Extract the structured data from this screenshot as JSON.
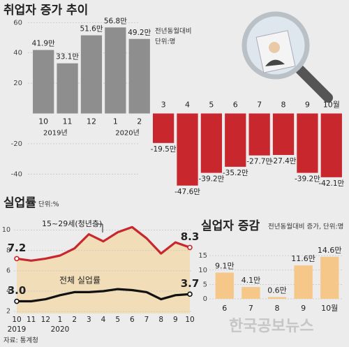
{
  "chart_data": [
    {
      "type": "bar",
      "title": "취업자 증가 추이",
      "subtitle": "전년동월대비",
      "unit": "단위:명",
      "categories": [
        "10",
        "11",
        "12",
        "1",
        "2",
        "3",
        "4",
        "5",
        "6",
        "7",
        "8",
        "9",
        "10월"
      ],
      "category_years": [
        "2019년",
        null,
        null,
        "2020년",
        null,
        null,
        null,
        null,
        null,
        null,
        null,
        null,
        null
      ],
      "values": [
        41.9,
        33.1,
        51.6,
        56.8,
        49.2,
        -19.5,
        -47.6,
        -39.2,
        -35.2,
        -27.7,
        -27.4,
        -39.2,
        -42.1
      ],
      "value_labels": [
        "41.9만",
        "33.1만",
        "51.6만",
        "56.8만",
        "49.2만",
        "-19.5만",
        "-47.6만",
        "-39.2만",
        "-35.2만",
        "-27.7만",
        "-27.4만",
        "-39.2만",
        "-42.1만"
      ],
      "positive_color": "#8e8e8e",
      "negative_color": "#c8282d",
      "ylim": [
        -50,
        62
      ],
      "yticks": [
        60,
        40,
        20,
        -20,
        -40
      ],
      "grid": true
    },
    {
      "type": "line",
      "title": "실업률",
      "unit": "단위:%",
      "categories": [
        "10",
        "11",
        "12",
        "1",
        "2",
        "3",
        "4",
        "5",
        "6",
        "7",
        "8",
        "9",
        "10"
      ],
      "category_years": [
        "2019",
        null,
        null,
        "2020",
        null,
        null,
        null,
        null,
        null,
        null,
        null,
        null,
        null
      ],
      "series": [
        {
          "name": "15~29세(청년층)",
          "color": "#c8282d",
          "fill": "#f2dcb3",
          "values": [
            7.2,
            7.0,
            7.2,
            7.5,
            8.2,
            9.6,
            8.9,
            9.8,
            10.3,
            9.2,
            7.7,
            8.8,
            8.3
          ],
          "value_labels": [
            "7.2",
            null,
            null,
            null,
            null,
            null,
            null,
            null,
            null,
            null,
            null,
            null,
            "8.3"
          ]
        },
        {
          "name": "전체 실업률",
          "color": "#111111",
          "values": [
            3.0,
            3.0,
            3.2,
            3.6,
            3.9,
            3.9,
            4.0,
            4.2,
            4.1,
            3.9,
            3.2,
            3.6,
            3.7
          ],
          "value_labels": [
            "3.0",
            null,
            null,
            null,
            null,
            null,
            null,
            null,
            null,
            null,
            null,
            null,
            "3.7"
          ]
        }
      ],
      "ylim": [
        1.8,
        10.8
      ],
      "yticks": [
        10,
        8,
        6,
        4,
        2
      ],
      "grid": true
    },
    {
      "type": "bar",
      "title": "실업자 증감",
      "subtitle": "전년동월대비 증가, 단위:명",
      "categories": [
        "6",
        "7",
        "8",
        "9",
        "10월"
      ],
      "values": [
        9.1,
        4.1,
        0.6,
        11.6,
        14.6
      ],
      "value_labels": [
        "9.1만",
        "4.1만",
        "0.6만",
        "11.6만",
        "14.6만"
      ],
      "color": "#f5c88a",
      "ylim": [
        0,
        16
      ],
      "yticks": [
        0,
        5,
        10,
        15
      ],
      "grid": true
    }
  ],
  "source": "자료: 통계청",
  "watermark": "한국공보뉴스"
}
